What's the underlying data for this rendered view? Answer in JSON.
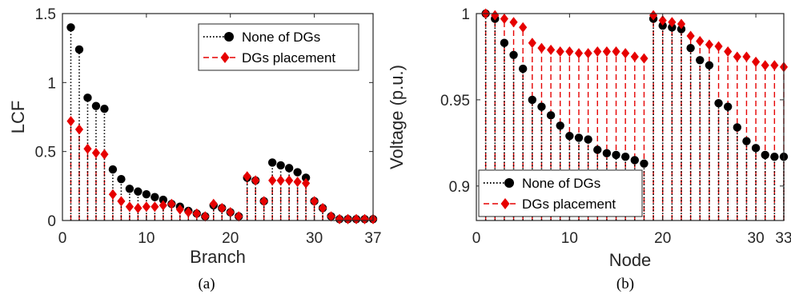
{
  "colors": {
    "series1": "#000000",
    "series2": "#e60000",
    "axis": "#262626"
  },
  "chart_data": [
    {
      "type": "stem",
      "caption": "(a)",
      "xlabel": "Branch",
      "ylabel": "LCF",
      "xlim": [
        0,
        37
      ],
      "ylim": [
        0,
        1.5
      ],
      "xticks": [
        0,
        10,
        20,
        30,
        37
      ],
      "yticks": [
        0,
        0.5,
        1,
        1.5
      ],
      "ytick_labels": [
        "0",
        "0.5",
        "1",
        "1.5"
      ],
      "legend_position": "top-right",
      "x": [
        1,
        2,
        3,
        4,
        5,
        6,
        7,
        8,
        9,
        10,
        11,
        12,
        13,
        14,
        15,
        16,
        17,
        18,
        19,
        20,
        21,
        22,
        23,
        24,
        25,
        26,
        27,
        28,
        29,
        30,
        31,
        32,
        33,
        34,
        35,
        36,
        37
      ],
      "series": [
        {
          "name": "None of DGs",
          "marker": "circle",
          "line": "dotted",
          "values": [
            1.4,
            1.24,
            0.89,
            0.83,
            0.81,
            0.37,
            0.3,
            0.23,
            0.21,
            0.19,
            0.17,
            0.15,
            0.12,
            0.1,
            0.07,
            0.05,
            0.03,
            0.11,
            0.09,
            0.06,
            0.03,
            0.31,
            0.29,
            0.14,
            0.42,
            0.4,
            0.38,
            0.35,
            0.31,
            0.14,
            0.09,
            0.03,
            0.01,
            0.01,
            0.01,
            0.01,
            0.01
          ]
        },
        {
          "name": "DGs placement",
          "marker": "diamond",
          "line": "dashed",
          "values": [
            0.72,
            0.66,
            0.52,
            0.49,
            0.48,
            0.19,
            0.14,
            0.1,
            0.09,
            0.1,
            0.1,
            0.11,
            0.12,
            0.08,
            0.06,
            0.05,
            0.03,
            0.12,
            0.09,
            0.06,
            0.03,
            0.32,
            0.29,
            0.14,
            0.29,
            0.29,
            0.29,
            0.28,
            0.27,
            0.14,
            0.09,
            0.03,
            0.01,
            0.01,
            0.01,
            0.01,
            0.01
          ]
        }
      ]
    },
    {
      "type": "stem",
      "caption": "(b)",
      "xlabel": "Node",
      "ylabel": "Voltage (p.u.)",
      "xlim": [
        0,
        33
      ],
      "ylim": [
        0.88,
        1.0
      ],
      "xticks": [
        0,
        10,
        20,
        30,
        33
      ],
      "yticks": [
        0.9,
        0.95,
        1.0
      ],
      "ytick_labels": [
        "0.9",
        "0.95",
        "1"
      ],
      "legend_position": "bottom-left",
      "x": [
        1,
        2,
        3,
        4,
        5,
        6,
        7,
        8,
        9,
        10,
        11,
        12,
        13,
        14,
        15,
        16,
        17,
        18,
        19,
        20,
        21,
        22,
        23,
        24,
        25,
        26,
        27,
        28,
        29,
        30,
        31,
        32,
        33
      ],
      "series": [
        {
          "name": "None of DGs",
          "marker": "circle",
          "line": "dotted",
          "values": [
            1.0,
            0.997,
            0.983,
            0.976,
            0.968,
            0.95,
            0.946,
            0.941,
            0.935,
            0.929,
            0.928,
            0.927,
            0.921,
            0.919,
            0.918,
            0.917,
            0.915,
            0.913,
            0.997,
            0.993,
            0.992,
            0.991,
            0.98,
            0.973,
            0.97,
            0.948,
            0.946,
            0.934,
            0.926,
            0.922,
            0.918,
            0.917,
            0.917
          ]
        },
        {
          "name": "DGs placement",
          "marker": "diamond",
          "line": "dashed",
          "values": [
            1.0,
            0.999,
            0.997,
            0.995,
            0.992,
            0.983,
            0.98,
            0.979,
            0.978,
            0.978,
            0.977,
            0.977,
            0.978,
            0.978,
            0.978,
            0.977,
            0.975,
            0.974,
            0.999,
            0.996,
            0.995,
            0.994,
            0.987,
            0.984,
            0.982,
            0.981,
            0.978,
            0.975,
            0.975,
            0.972,
            0.97,
            0.97,
            0.969
          ]
        }
      ]
    }
  ]
}
